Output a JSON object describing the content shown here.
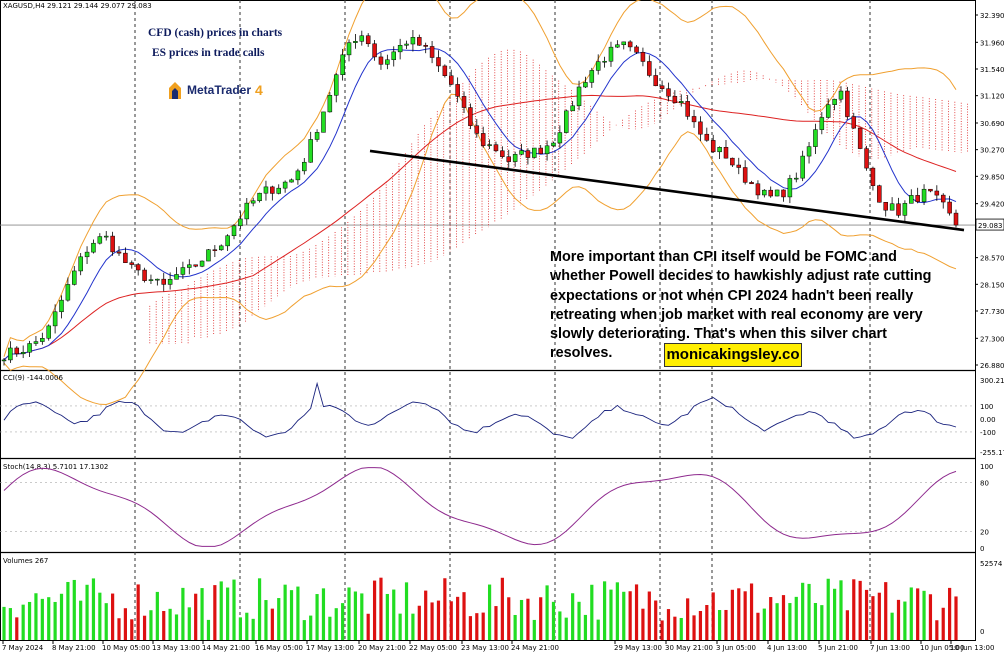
{
  "chart_data": {
    "type": "candlestick",
    "symbol_header": "XAGUSD,H4  29.121 29.144 29.077 29.083",
    "instrument": "XAGUSD",
    "timeframe": "H4",
    "ohlc_last": {
      "open": 29.121,
      "high": 29.144,
      "low": 29.077,
      "close": 29.083
    },
    "last_price_label": "29.083",
    "price_axis": [
      "32.390",
      "31.960",
      "31.540",
      "31.120",
      "30.690",
      "30.270",
      "29.850",
      "29.420",
      "28.570",
      "28.150",
      "27.730",
      "27.300",
      "26.880"
    ],
    "price_range": [
      26.88,
      32.39
    ],
    "x_labels": [
      "7 May 2024",
      "8 May 21:00",
      "10 May 05:00",
      "13 May 13:00",
      "14 May 21:00",
      "16 May 05:00",
      "17 May 13:00",
      "20 May 21:00",
      "22 May 05:00",
      "23 May 13:00",
      "24 May 21:00",
      "29 May 13:00",
      "30 May 21:00",
      "3 Jun 05:00",
      "4 Jun 13:00",
      "5 Jun 21:00",
      "7 Jun 13:00",
      "10 Jun 05:00",
      "10 Jun 13:00"
    ],
    "close_path": [
      27.05,
      27.1,
      27.2,
      27.4,
      27.9,
      28.4,
      28.8,
      28.9,
      28.6,
      28.35,
      28.25,
      28.1,
      28.3,
      28.4,
      28.6,
      28.8,
      29.1,
      29.4,
      29.6,
      29.7,
      29.8,
      30.2,
      30.8,
      31.4,
      32.0,
      32.1,
      31.6,
      31.8,
      32.0,
      31.9,
      31.6,
      31.3,
      30.8,
      30.4,
      30.3,
      30.1,
      30.2,
      30.25,
      30.4,
      30.8,
      31.3,
      31.6,
      31.8,
      31.9,
      31.7,
      31.4,
      31.2,
      31.0,
      30.6,
      30.3,
      30.2,
      29.9,
      29.7,
      29.5,
      29.6,
      29.9,
      30.4,
      31.0,
      31.2,
      30.5,
      29.8,
      29.4,
      29.3,
      29.5,
      29.6,
      29.4,
      29.083
    ],
    "trendline": {
      "from": 30.25,
      "to": 29.083
    },
    "sub_panels": [
      {
        "label": "CCI(9) -144.0006",
        "axis": [
          "300.213",
          "100",
          "0.00",
          "-100",
          "-255.175"
        ]
      },
      {
        "label": "Stoch(14,8,3) 5.7101 17.1302",
        "axis": [
          "100",
          "80",
          "20",
          "0"
        ]
      },
      {
        "label": "Volumes 267",
        "axis": [
          "52574",
          "0"
        ]
      }
    ]
  },
  "annotations": {
    "caption_line1": "CFD (cash) prices in charts",
    "caption_line2": "ES prices in trade calls",
    "logo_text": "MetaTrader",
    "logo_version": "4",
    "commentary": "More important than CPI itself would be FOMC and whether Powell decides to hawkishly adjust rate cutting expectations or not when CPI 2024 hadn't been really retreating when job market with real economy are very slowly deteriorating. That's when this silver chart resolves.",
    "website": "monicakingsley.co"
  },
  "colors": {
    "bull": "#22dd22",
    "bear": "#dd1111",
    "fast_ma": "#2233cc",
    "slow_ma": "#dd2222",
    "bands": "#f0a030",
    "cloud": "#dd2222",
    "cci": "#1a237e",
    "stoch": "#8e2a8e",
    "brand_bg": "#ffee00"
  }
}
